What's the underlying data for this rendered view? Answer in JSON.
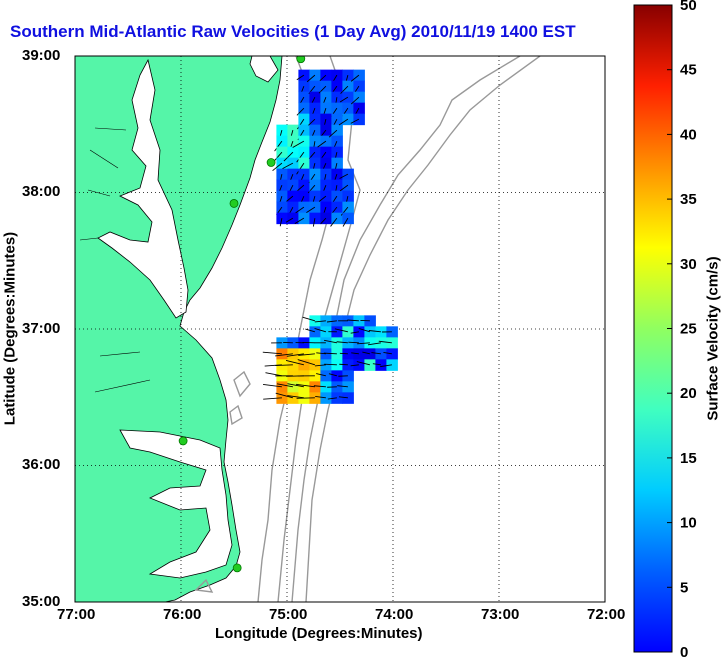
{
  "title": "Southern Mid-Atlantic Raw Velocities (1 Day Avg) 2010/11/19 1400 EST",
  "axes": {
    "x_label": "Longitude (Degrees:Minutes)",
    "y_label": "Latitude (Degrees:Minutes)",
    "x_ticks": [
      "77:00",
      "76:00",
      "75:00",
      "74:00",
      "73:00",
      "72:00"
    ],
    "y_ticks": [
      "39:00",
      "38:00",
      "37:00",
      "36:00",
      "35:00"
    ]
  },
  "colorbar": {
    "label": "Surface Velocity (cm/s)",
    "ticks": [
      "50",
      "45",
      "40",
      "35",
      "30",
      "25",
      "20",
      "15",
      "10",
      "5",
      "0"
    ],
    "min": 0,
    "max": 50
  },
  "colors": {
    "title": "#1010e0",
    "land": "#55f5a8",
    "water": "#ffffff",
    "bathymetry": "#999999",
    "grid": "#000000",
    "stations": "#22cc22"
  },
  "map_data": {
    "extent": {
      "lon_west": -77,
      "lon_east": -72,
      "lat_south": 35,
      "lat_north": 39
    },
    "stations": [
      {
        "lon": -74.87,
        "lat": 38.98
      },
      {
        "lon": -75.15,
        "lat": 38.22
      },
      {
        "lon": -75.5,
        "lat": 37.92
      },
      {
        "lon": -75.98,
        "lat": 36.18
      },
      {
        "lon": -75.47,
        "lat": 35.25
      }
    ],
    "velocity_regions": [
      {
        "name": "northern",
        "lon_range": [
          -75.1,
          -74.35
        ],
        "lat_range": [
          37.8,
          38.9
        ],
        "speed_range_cms": [
          5,
          22
        ]
      },
      {
        "name": "southern",
        "lon_range": [
          -75.1,
          -74.0
        ],
        "lat_range": [
          36.5,
          37.1
        ],
        "speed_range_cms": [
          5,
          38
        ]
      }
    ]
  }
}
